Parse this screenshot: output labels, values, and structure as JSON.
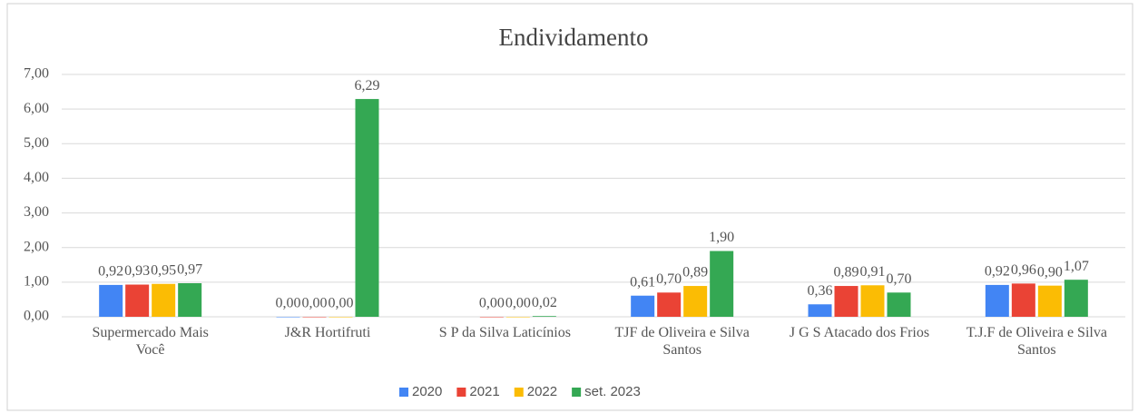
{
  "chart_data": {
    "type": "bar",
    "title": "Endividamento",
    "categories": [
      "Supermercado Mais Você",
      "J&R Hortifruti",
      "S P da Silva Laticínios",
      "TJF de Oliveira e Silva Santos",
      "J G S Atacado dos Frios",
      "T.J.F de Oliveira e Silva Santos"
    ],
    "series": [
      {
        "name": "2020",
        "color": "#4285f4",
        "values": [
          0.92,
          0.0,
          null,
          0.61,
          0.36,
          0.92
        ],
        "value_labels": [
          "0,92",
          "0,00",
          null,
          "0,61",
          "0,36",
          "0,92"
        ]
      },
      {
        "name": "2021",
        "color": "#ea4335",
        "values": [
          0.93,
          0.0,
          0.0,
          0.7,
          0.89,
          0.96
        ],
        "value_labels": [
          "0,93",
          "0,00",
          "0,00",
          "0,70",
          "0,89",
          "0,96"
        ]
      },
      {
        "name": "2022",
        "color": "#fbbc04",
        "values": [
          0.95,
          0.0,
          0.0,
          0.89,
          0.91,
          0.9
        ],
        "value_labels": [
          "0,95",
          "0,00",
          "0,00",
          "0,89",
          "0,91",
          "0,90"
        ]
      },
      {
        "name": "set. 2023",
        "color": "#34a853",
        "values": [
          0.97,
          6.29,
          0.02,
          1.9,
          0.7,
          1.07
        ],
        "value_labels": [
          "0,97",
          "6,29",
          "0,02",
          "1,90",
          "0,70",
          "1,07"
        ]
      }
    ],
    "ylim": [
      0,
      7
    ],
    "yticks": [
      {
        "value": 0,
        "label": "0,00"
      },
      {
        "value": 1,
        "label": "1,00"
      },
      {
        "value": 2,
        "label": "2,00"
      },
      {
        "value": 3,
        "label": "3,00"
      },
      {
        "value": 4,
        "label": "4,00"
      },
      {
        "value": 5,
        "label": "5,00"
      },
      {
        "value": 6,
        "label": "6,00"
      },
      {
        "value": 7,
        "label": "7,00"
      }
    ],
    "grid": true,
    "legend": "bottom"
  }
}
